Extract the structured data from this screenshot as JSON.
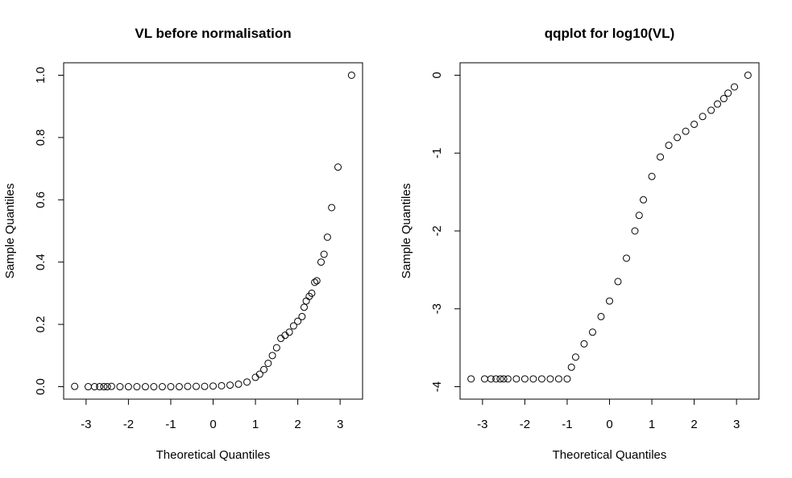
{
  "chart_data": [
    {
      "type": "scatter",
      "title": "VL before normalisation",
      "x_label": "Theoretical Quantiles",
      "y_label": "Sample Quantiles",
      "x": [
        -3.27,
        -2.95,
        -2.8,
        -2.68,
        -2.58,
        -2.5,
        -2.4,
        -2.2,
        -2.0,
        -1.8,
        -1.6,
        -1.4,
        -1.2,
        -1.0,
        -0.8,
        -0.6,
        -0.4,
        -0.2,
        0,
        0.2,
        0.4,
        0.6,
        0.8,
        1.0,
        1.1,
        1.2,
        1.3,
        1.4,
        1.5,
        1.6,
        1.7,
        1.8,
        1.9,
        2.0,
        2.1,
        2.15,
        2.2,
        2.27,
        2.33,
        2.4,
        2.45,
        2.55,
        2.62,
        2.7,
        2.8,
        2.95,
        3.27
      ],
      "values": [
        0.001,
        0,
        0,
        0,
        0,
        0,
        0.001,
        0,
        0,
        0,
        0,
        0,
        0,
        0,
        0,
        0.001,
        0.001,
        0.001,
        0.002,
        0.003,
        0.005,
        0.008,
        0.015,
        0.03,
        0.04,
        0.055,
        0.075,
        0.1,
        0.125,
        0.155,
        0.165,
        0.175,
        0.195,
        0.21,
        0.225,
        0.255,
        0.275,
        0.29,
        0.3,
        0.335,
        0.34,
        0.4,
        0.425,
        0.48,
        0.575,
        0.705,
        1.0
      ],
      "color": "#000000",
      "xlim": [
        -3.53,
        3.53
      ],
      "ylim": [
        -0.04,
        1.04
      ],
      "xticks": [
        -3,
        -2,
        -1,
        0,
        1,
        2,
        3
      ],
      "yticks": [
        {
          "value": 0,
          "label": "0.0"
        },
        0.2,
        0.4,
        0.6,
        0.8,
        {
          "value": 1,
          "label": "1.0"
        }
      ]
    },
    {
      "type": "scatter",
      "title": "qqplot for log10(VL)",
      "x_label": "Theoretical Quantiles",
      "y_label": "Sample Quantiles",
      "x": [
        -3.27,
        -2.95,
        -2.8,
        -2.68,
        -2.58,
        -2.5,
        -2.4,
        -2.2,
        -2.0,
        -1.8,
        -1.6,
        -1.4,
        -1.2,
        -1.0,
        -0.9,
        -0.8,
        -0.6,
        -0.4,
        -0.2,
        0,
        0.2,
        0.4,
        0.6,
        0.7,
        0.8,
        1.0,
        1.2,
        1.4,
        1.6,
        1.8,
        2.0,
        2.2,
        2.4,
        2.55,
        2.7,
        2.8,
        2.95,
        3.27
      ],
      "values": [
        -3.9,
        -3.9,
        -3.9,
        -3.9,
        -3.9,
        -3.9,
        -3.9,
        -3.9,
        -3.9,
        -3.9,
        -3.9,
        -3.9,
        -3.9,
        -3.9,
        -3.75,
        -3.62,
        -3.45,
        -3.3,
        -3.1,
        -2.9,
        -2.65,
        -2.35,
        -2.0,
        -1.8,
        -1.6,
        -1.3,
        -1.05,
        -0.9,
        -0.8,
        -0.72,
        -0.63,
        -0.53,
        -0.45,
        -0.37,
        -0.3,
        -0.23,
        -0.15,
        0
      ],
      "color": "#000000",
      "xlim": [
        -3.53,
        3.53
      ],
      "ylim": [
        -4.16,
        0.16
      ],
      "xticks": [
        -3,
        -2,
        -1,
        0,
        1,
        2,
        3
      ],
      "yticks": [
        0,
        -1,
        -2,
        -3,
        -4
      ]
    }
  ]
}
